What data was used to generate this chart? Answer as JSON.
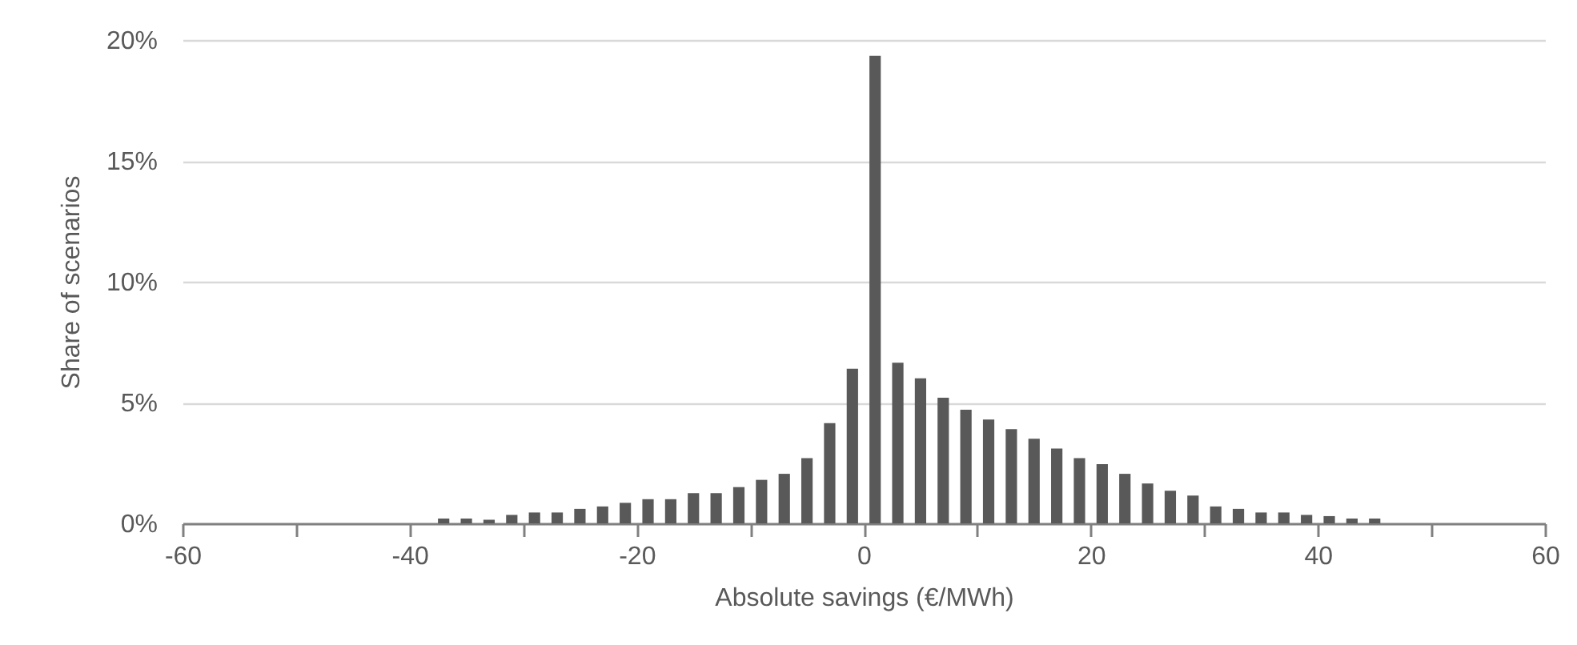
{
  "chart_data": {
    "type": "histogram",
    "xlabel": "Absolute savings (€/MWh)",
    "ylabel": "Share of scenarios",
    "bins": [
      -38,
      -36,
      -34,
      -32,
      -30,
      -28,
      -26,
      -24,
      -22,
      -20,
      -18,
      -16,
      -14,
      -12,
      -10,
      -8,
      -6,
      -4,
      -2,
      0,
      2,
      4,
      6,
      8,
      10,
      12,
      14,
      16,
      18,
      20,
      22,
      24,
      26,
      28,
      30,
      32,
      34,
      36,
      38,
      40,
      42,
      44,
      46
    ],
    "values": [
      0.2,
      0.2,
      0.15,
      0.35,
      0.45,
      0.45,
      0.6,
      0.7,
      0.85,
      1.0,
      1.0,
      1.25,
      1.25,
      1.5,
      1.8,
      2.05,
      2.7,
      4.15,
      6.4,
      19.35,
      6.65,
      6.0,
      5.2,
      4.7,
      4.3,
      3.9,
      3.5,
      3.1,
      2.7,
      2.45,
      2.05,
      1.65,
      1.35,
      1.15,
      0.7,
      0.6,
      0.45,
      0.45,
      0.35,
      0.3,
      0.2,
      0.2
    ],
    "color": "#595959",
    "xlim": [
      -60,
      60
    ],
    "xticks": [
      -60,
      {
        "value": -50,
        "label": null
      },
      -40,
      {
        "value": -30,
        "label": null
      },
      -20,
      {
        "value": -10,
        "label": null
      },
      0,
      {
        "value": 10,
        "label": null
      },
      20,
      {
        "value": 30,
        "label": null
      },
      40,
      {
        "value": 50,
        "label": null
      },
      60
    ],
    "ylim": [
      0,
      20
    ],
    "yticks": [
      {
        "value": 0,
        "label": "0%"
      },
      {
        "value": 5,
        "label": "5%"
      },
      {
        "value": 10,
        "label": "10%"
      },
      {
        "value": 15,
        "label": "15%"
      },
      {
        "value": 20,
        "label": "20%"
      }
    ],
    "grid": "y"
  }
}
